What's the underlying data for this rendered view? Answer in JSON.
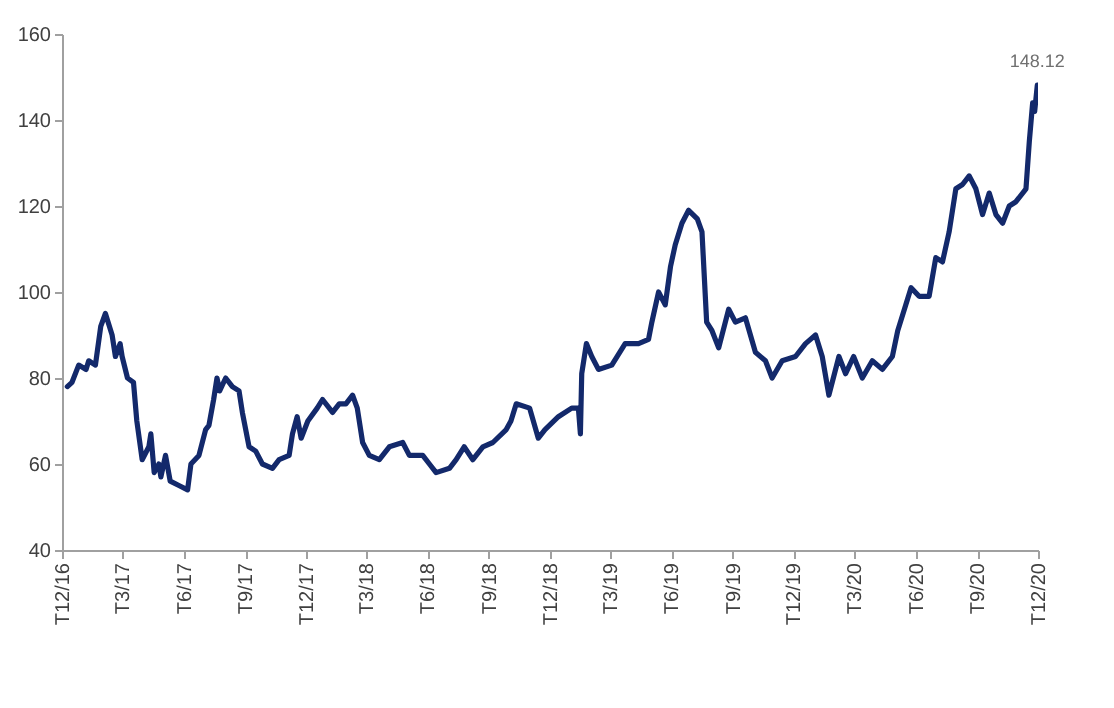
{
  "chart_data": {
    "type": "line",
    "grid": false,
    "marker": "none",
    "line_style": "solid",
    "xlim": [
      "2016-12-01",
      "2020-12-01"
    ],
    "ylim": [
      40,
      160
    ],
    "yticks": [
      40,
      60,
      80,
      100,
      120,
      140,
      160
    ],
    "xticks": [
      {
        "value": "2016-12-01",
        "label": "T12/16"
      },
      {
        "value": "2017-03-01",
        "label": "T3/17"
      },
      {
        "value": "2017-06-01",
        "label": "T6/17"
      },
      {
        "value": "2017-09-01",
        "label": "T9/17"
      },
      {
        "value": "2017-12-01",
        "label": "T12/17"
      },
      {
        "value": "2018-03-01",
        "label": "T3/18"
      },
      {
        "value": "2018-06-01",
        "label": "T6/18"
      },
      {
        "value": "2018-09-01",
        "label": "T9/18"
      },
      {
        "value": "2018-12-01",
        "label": "T12/18"
      },
      {
        "value": "2019-03-01",
        "label": "T3/19"
      },
      {
        "value": "2019-06-01",
        "label": "T6/19"
      },
      {
        "value": "2019-09-01",
        "label": "T9/19"
      },
      {
        "value": "2019-12-01",
        "label": "T12/19"
      },
      {
        "value": "2020-03-01",
        "label": "T3/20"
      },
      {
        "value": "2020-06-01",
        "label": "T6/20"
      },
      {
        "value": "2020-09-01",
        "label": "T9/20"
      },
      {
        "value": "2020-12-01",
        "label": "T12/20"
      }
    ],
    "x": [
      "2016-12-09",
      "2016-12-16",
      "2016-12-26",
      "2017-01-06",
      "2017-01-10",
      "2017-01-20",
      "2017-01-28",
      "2017-02-04",
      "2017-02-14",
      "2017-02-19",
      "2017-02-26",
      "2017-03-01",
      "2017-03-09",
      "2017-03-18",
      "2017-03-23",
      "2017-03-31",
      "2017-04-10",
      "2017-04-13",
      "2017-04-18",
      "2017-04-25",
      "2017-04-28",
      "2017-05-05",
      "2017-05-12",
      "2017-05-25",
      "2017-06-07",
      "2017-06-12",
      "2017-06-24",
      "2017-07-04",
      "2017-07-09",
      "2017-07-16",
      "2017-07-21",
      "2017-07-25",
      "2017-08-03",
      "2017-08-13",
      "2017-08-23",
      "2017-08-28",
      "2017-09-07",
      "2017-09-17",
      "2017-09-27",
      "2017-10-12",
      "2017-10-22",
      "2017-11-06",
      "2017-11-11",
      "2017-11-18",
      "2017-11-24",
      "2017-12-04",
      "2017-12-18",
      "2017-12-26",
      "2018-01-10",
      "2018-01-20",
      "2018-01-30",
      "2018-02-09",
      "2018-02-16",
      "2018-02-24",
      "2018-03-06",
      "2018-03-21",
      "2018-04-05",
      "2018-04-25",
      "2018-05-05",
      "2018-05-25",
      "2018-06-04",
      "2018-06-14",
      "2018-07-04",
      "2018-07-14",
      "2018-07-26",
      "2018-08-08",
      "2018-08-23",
      "2018-09-07",
      "2018-09-27",
      "2018-10-04",
      "2018-10-12",
      "2018-11-01",
      "2018-11-14",
      "2018-11-24",
      "2018-12-14",
      "2019-01-03",
      "2019-01-13",
      "2019-01-16",
      "2019-01-18",
      "2019-01-25",
      "2019-02-02",
      "2019-02-12",
      "2019-03-04",
      "2019-03-24",
      "2019-04-13",
      "2019-04-28",
      "2019-05-03",
      "2019-05-13",
      "2019-05-23",
      "2019-05-31",
      "2019-06-07",
      "2019-06-17",
      "2019-06-27",
      "2019-07-10",
      "2019-07-17",
      "2019-07-24",
      "2019-08-01",
      "2019-08-11",
      "2019-08-26",
      "2019-09-05",
      "2019-09-20",
      "2019-10-05",
      "2019-10-20",
      "2019-10-30",
      "2019-11-14",
      "2019-12-04",
      "2019-12-19",
      "2020-01-03",
      "2020-01-13",
      "2020-01-23",
      "2020-02-07",
      "2020-02-17",
      "2020-02-29",
      "2020-03-13",
      "2020-03-28",
      "2020-04-12",
      "2020-04-27",
      "2020-05-05",
      "2020-05-17",
      "2020-05-25",
      "2020-06-06",
      "2020-06-21",
      "2020-07-01",
      "2020-07-11",
      "2020-07-21",
      "2020-07-31",
      "2020-08-10",
      "2020-08-20",
      "2020-08-30",
      "2020-09-09",
      "2020-09-19",
      "2020-09-29",
      "2020-10-09",
      "2020-10-19",
      "2020-10-29",
      "2020-11-13",
      "2020-11-18",
      "2020-11-23",
      "2020-11-26",
      "2020-11-30"
    ],
    "series": [
      {
        "color": "#13296b",
        "values": [
          78,
          79,
          83,
          82,
          84,
          83,
          92,
          95,
          90,
          85,
          88,
          85,
          80,
          79,
          70,
          61,
          64,
          67,
          58,
          60,
          57,
          62,
          56,
          55,
          54,
          60,
          62,
          68,
          69,
          75,
          80,
          77,
          80,
          78,
          77,
          72,
          64,
          63,
          60,
          59,
          61,
          62,
          67,
          71,
          66,
          70,
          73,
          75,
          72,
          74,
          74,
          76,
          73,
          65,
          62,
          61,
          64,
          65,
          62,
          62,
          60,
          58,
          59,
          61,
          64,
          61,
          64,
          65,
          68,
          70,
          74,
          73,
          66,
          68,
          71,
          73,
          73,
          67,
          81,
          88,
          85,
          82,
          83,
          88,
          88,
          89,
          93,
          100,
          97,
          106,
          111,
          116,
          119,
          117,
          114,
          93,
          91,
          87,
          96,
          93,
          94,
          86,
          84,
          80,
          84,
          85,
          88,
          90,
          85,
          76,
          85,
          81,
          85,
          80,
          84,
          82,
          85,
          91,
          97,
          101,
          99,
          99,
          108,
          107,
          114,
          124,
          125,
          127,
          124,
          118,
          123,
          118,
          116,
          120,
          121,
          124,
          135,
          144,
          142,
          148.12
        ],
        "value_labels": [
          null,
          null,
          null,
          null,
          null,
          null,
          null,
          null,
          null,
          null,
          null,
          null,
          null,
          null,
          null,
          null,
          null,
          null,
          null,
          null,
          null,
          null,
          null,
          null,
          null,
          null,
          null,
          null,
          null,
          null,
          null,
          null,
          null,
          null,
          null,
          null,
          null,
          null,
          null,
          null,
          null,
          null,
          null,
          null,
          null,
          null,
          null,
          null,
          null,
          null,
          null,
          null,
          null,
          null,
          null,
          null,
          null,
          null,
          null,
          null,
          null,
          null,
          null,
          null,
          null,
          null,
          null,
          null,
          null,
          null,
          null,
          null,
          null,
          null,
          null,
          null,
          null,
          null,
          null,
          null,
          null,
          null,
          null,
          null,
          null,
          null,
          null,
          null,
          null,
          null,
          null,
          null,
          null,
          null,
          null,
          null,
          null,
          null,
          null,
          null,
          null,
          null,
          null,
          null,
          null,
          null,
          null,
          null,
          null,
          null,
          null,
          null,
          null,
          null,
          null,
          null,
          null,
          null,
          null,
          null,
          null,
          null,
          null,
          null,
          null,
          null,
          null,
          null,
          null,
          null,
          null,
          null,
          null,
          null,
          null,
          null,
          null,
          null,
          null,
          "148.12"
        ]
      }
    ]
  }
}
